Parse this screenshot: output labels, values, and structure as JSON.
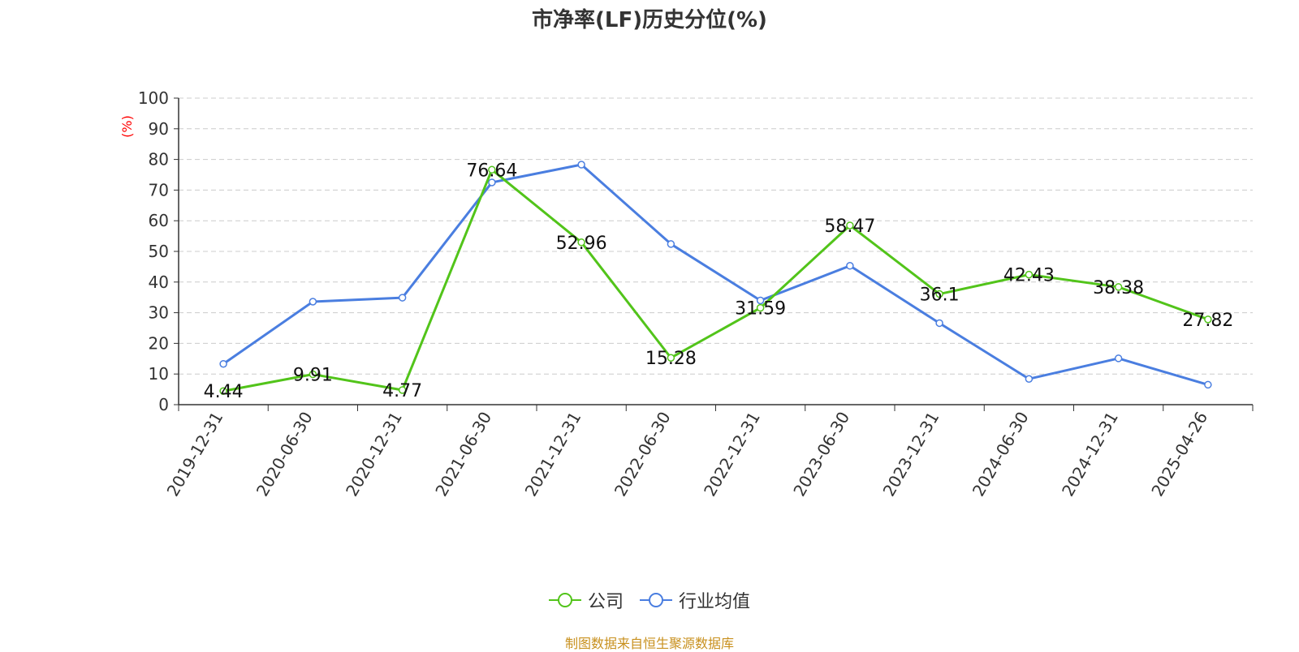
{
  "title": "市净率(LF)历史分位(%)",
  "source_note": "制图数据来自恒生聚源数据库",
  "colors": {
    "company": "#52c41a",
    "industry": "#4a7ee0",
    "unit": "#ff0000",
    "grid": "#cccccc",
    "axis": "#333333"
  },
  "chart_data": {
    "type": "line",
    "title": "市净率(LF)历史分位(%)",
    "ylabel": "(%)",
    "ylim": [
      0,
      100
    ],
    "yticks": [
      0,
      10,
      20,
      30,
      40,
      50,
      60,
      70,
      80,
      90,
      100
    ],
    "grid": true,
    "legend_position": "bottom",
    "categories": [
      "2019-12-31",
      "2020-06-30",
      "2020-12-31",
      "2021-06-30",
      "2021-12-31",
      "2022-06-30",
      "2022-12-31",
      "2023-06-30",
      "2023-12-31",
      "2024-06-30",
      "2024-12-31",
      "2025-04-26"
    ],
    "series": [
      {
        "name": "公司",
        "color": "#52c41a",
        "show_labels": true,
        "labels": [
          "4.44",
          "9.91",
          "4.77",
          "76.64",
          "52.96",
          "15.28",
          "31.59",
          "58.47",
          "36.1",
          "42.43",
          "38.38",
          "27.82"
        ],
        "values": [
          4.44,
          9.91,
          4.77,
          76.64,
          52.96,
          15.28,
          31.59,
          58.47,
          36.1,
          42.43,
          38.38,
          27.82
        ]
      },
      {
        "name": "行业均值",
        "color": "#4a7ee0",
        "show_labels": false,
        "values": [
          13.3,
          33.6,
          34.9,
          72.5,
          78.3,
          52.4,
          34.0,
          45.3,
          26.6,
          8.4,
          15.1,
          6.5
        ]
      }
    ]
  }
}
